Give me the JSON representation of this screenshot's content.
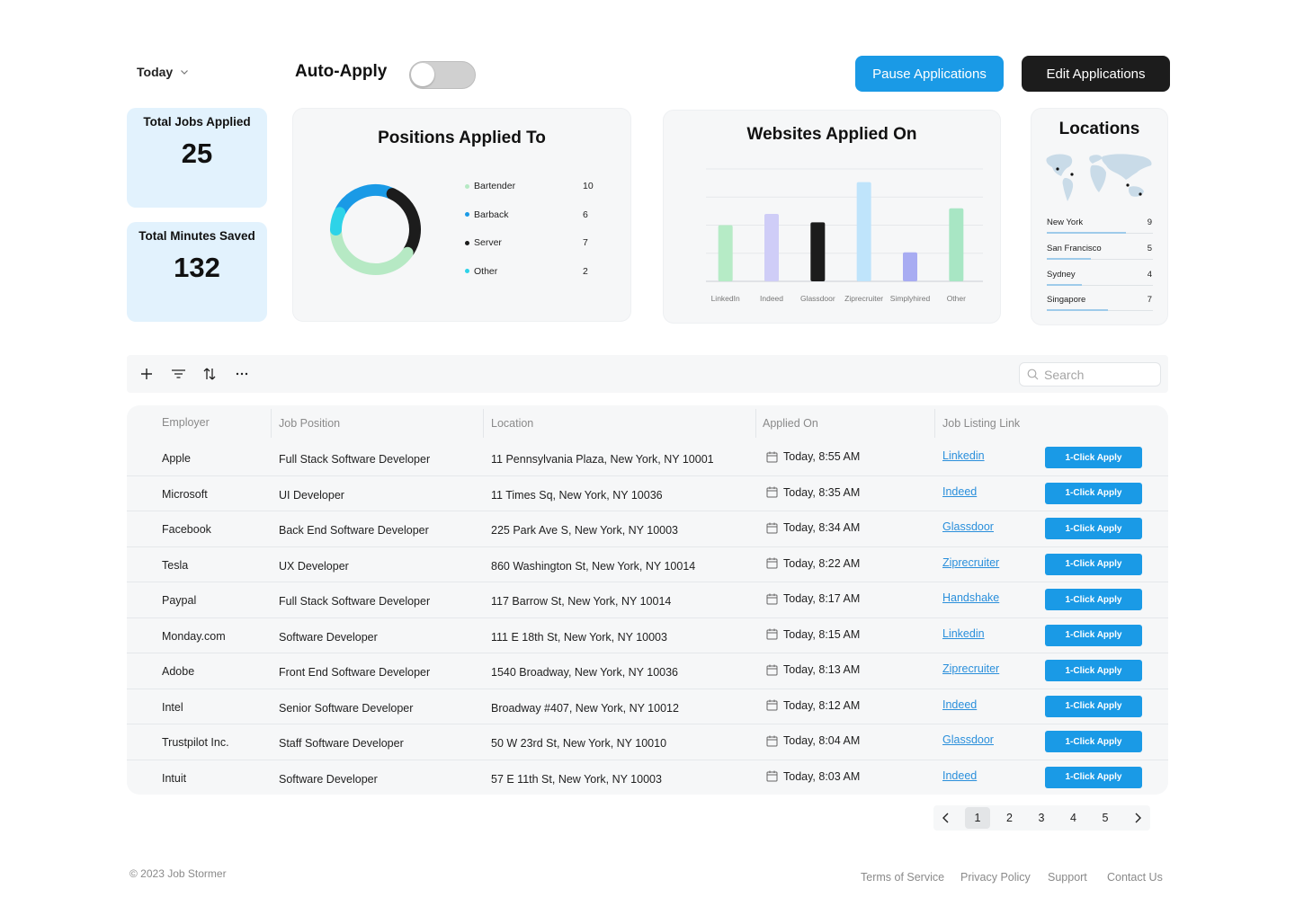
{
  "header": {
    "period": "Today",
    "auto_apply_label": "Auto-Apply",
    "auto_apply_on": false,
    "pause_label": "Pause Applications",
    "edit_label": "Edit Applications"
  },
  "stats": {
    "jobs_label": "Total Jobs Applied",
    "jobs_value": "25",
    "minutes_label": "Total Minutes Saved",
    "minutes_value": "132"
  },
  "positions": {
    "title": "Positions Applied To",
    "items": [
      {
        "name": "Bartender",
        "count": "10",
        "color": "#b6e9c4"
      },
      {
        "name": "Barback",
        "count": "6",
        "color": "#1a9ae6"
      },
      {
        "name": "Server",
        "count": "7",
        "color": "#1c1c1c"
      },
      {
        "name": "Other",
        "count": "2",
        "color": "#2ed3e8"
      }
    ]
  },
  "websites": {
    "title": "Websites Applied On"
  },
  "locations": {
    "title": "Locations",
    "items": [
      {
        "name": "New York",
        "count": "9"
      },
      {
        "name": "San Francisco",
        "count": "5"
      },
      {
        "name": "Sydney",
        "count": "4"
      },
      {
        "name": "Singapore",
        "count": "7"
      }
    ]
  },
  "search": {
    "placeholder": "Search"
  },
  "table": {
    "headers": [
      "Employer",
      "Job Position",
      "Location",
      "Applied On",
      "Job Listing Link"
    ],
    "apply_label": "1-Click Apply",
    "rows": [
      {
        "employer": "Apple",
        "position": "Full Stack Software Developer",
        "location": "11 Pennsylvania Plaza, New York, NY 10001",
        "applied": "Today, 8:55 AM",
        "link": "Linkedin"
      },
      {
        "employer": "Microsoft",
        "position": "UI Developer",
        "location": "11 Times Sq, New York, NY 10036",
        "applied": "Today, 8:35 AM",
        "link": "Indeed"
      },
      {
        "employer": "Facebook",
        "position": "Back End Software Developer",
        "location": "225 Park Ave S, New York, NY 10003",
        "applied": "Today, 8:34 AM",
        "link": "Glassdoor"
      },
      {
        "employer": "Tesla",
        "position": "UX Developer",
        "location": "860 Washington St, New York, NY 10014",
        "applied": "Today, 8:22 AM",
        "link": "Ziprecruiter"
      },
      {
        "employer": "Paypal",
        "position": "Full Stack Software Developer",
        "location": "117 Barrow St, New York, NY 10014",
        "applied": "Today, 8:17 AM",
        "link": "Handshake"
      },
      {
        "employer": "Monday.com",
        "position": "Software Developer",
        "location": "111 E 18th St, New York, NY 10003",
        "applied": "Today, 8:15 AM",
        "link": "Linkedin"
      },
      {
        "employer": "Adobe",
        "position": "Front End Software Developer",
        "location": "1540 Broadway, New York, NY 10036",
        "applied": "Today, 8:13 AM",
        "link": "Ziprecruiter"
      },
      {
        "employer": "Intel",
        "position": "Senior Software Developer",
        "location": "Broadway #407, New York, NY 10012",
        "applied": "Today, 8:12 AM",
        "link": "Indeed"
      },
      {
        "employer": "Trustpilot Inc.",
        "position": "Staff Software Developer",
        "location": "50 W 23rd St, New York, NY 10010",
        "applied": "Today, 8:04 AM",
        "link": "Glassdoor"
      },
      {
        "employer": "Intuit",
        "position": "Software Developer",
        "location": "57 E 11th St, New York, NY 10003",
        "applied": "Today, 8:03 AM",
        "link": "Indeed"
      }
    ]
  },
  "pagination": {
    "pages": [
      "1",
      "2",
      "3",
      "4",
      "5"
    ],
    "current": "1"
  },
  "footer": {
    "copyright": "© 2023 Job Stormer",
    "links": [
      "Terms of Service",
      "Privacy Policy",
      "Support",
      "Contact Us"
    ]
  },
  "chart_data": [
    {
      "type": "pie",
      "title": "Positions Applied To",
      "categories": [
        "Bartender",
        "Barback",
        "Server",
        "Other"
      ],
      "values": [
        10,
        6,
        7,
        2
      ],
      "colors": [
        "#b6e9c4",
        "#1a9ae6",
        "#1c1c1c",
        "#2ed3e8"
      ]
    },
    {
      "type": "bar",
      "title": "Websites Applied On",
      "categories": [
        "LinkedIn",
        "Indeed",
        "Glassdoor",
        "Ziprecruiter",
        "Simplyhired",
        "Other"
      ],
      "values": [
        6,
        7.2,
        6.3,
        10.6,
        3.1,
        7.8
      ],
      "colors": [
        "#b6ebc6",
        "#cfcdf7",
        "#1c1c1c",
        "#bfe4fb",
        "#a8acf2",
        "#a8e6c4"
      ],
      "ylim": [
        0,
        12
      ],
      "grid": true
    },
    {
      "type": "bar",
      "title": "Locations",
      "categories": [
        "New York",
        "San Francisco",
        "Sydney",
        "Singapore"
      ],
      "values": [
        9,
        5,
        4,
        7
      ]
    }
  ]
}
